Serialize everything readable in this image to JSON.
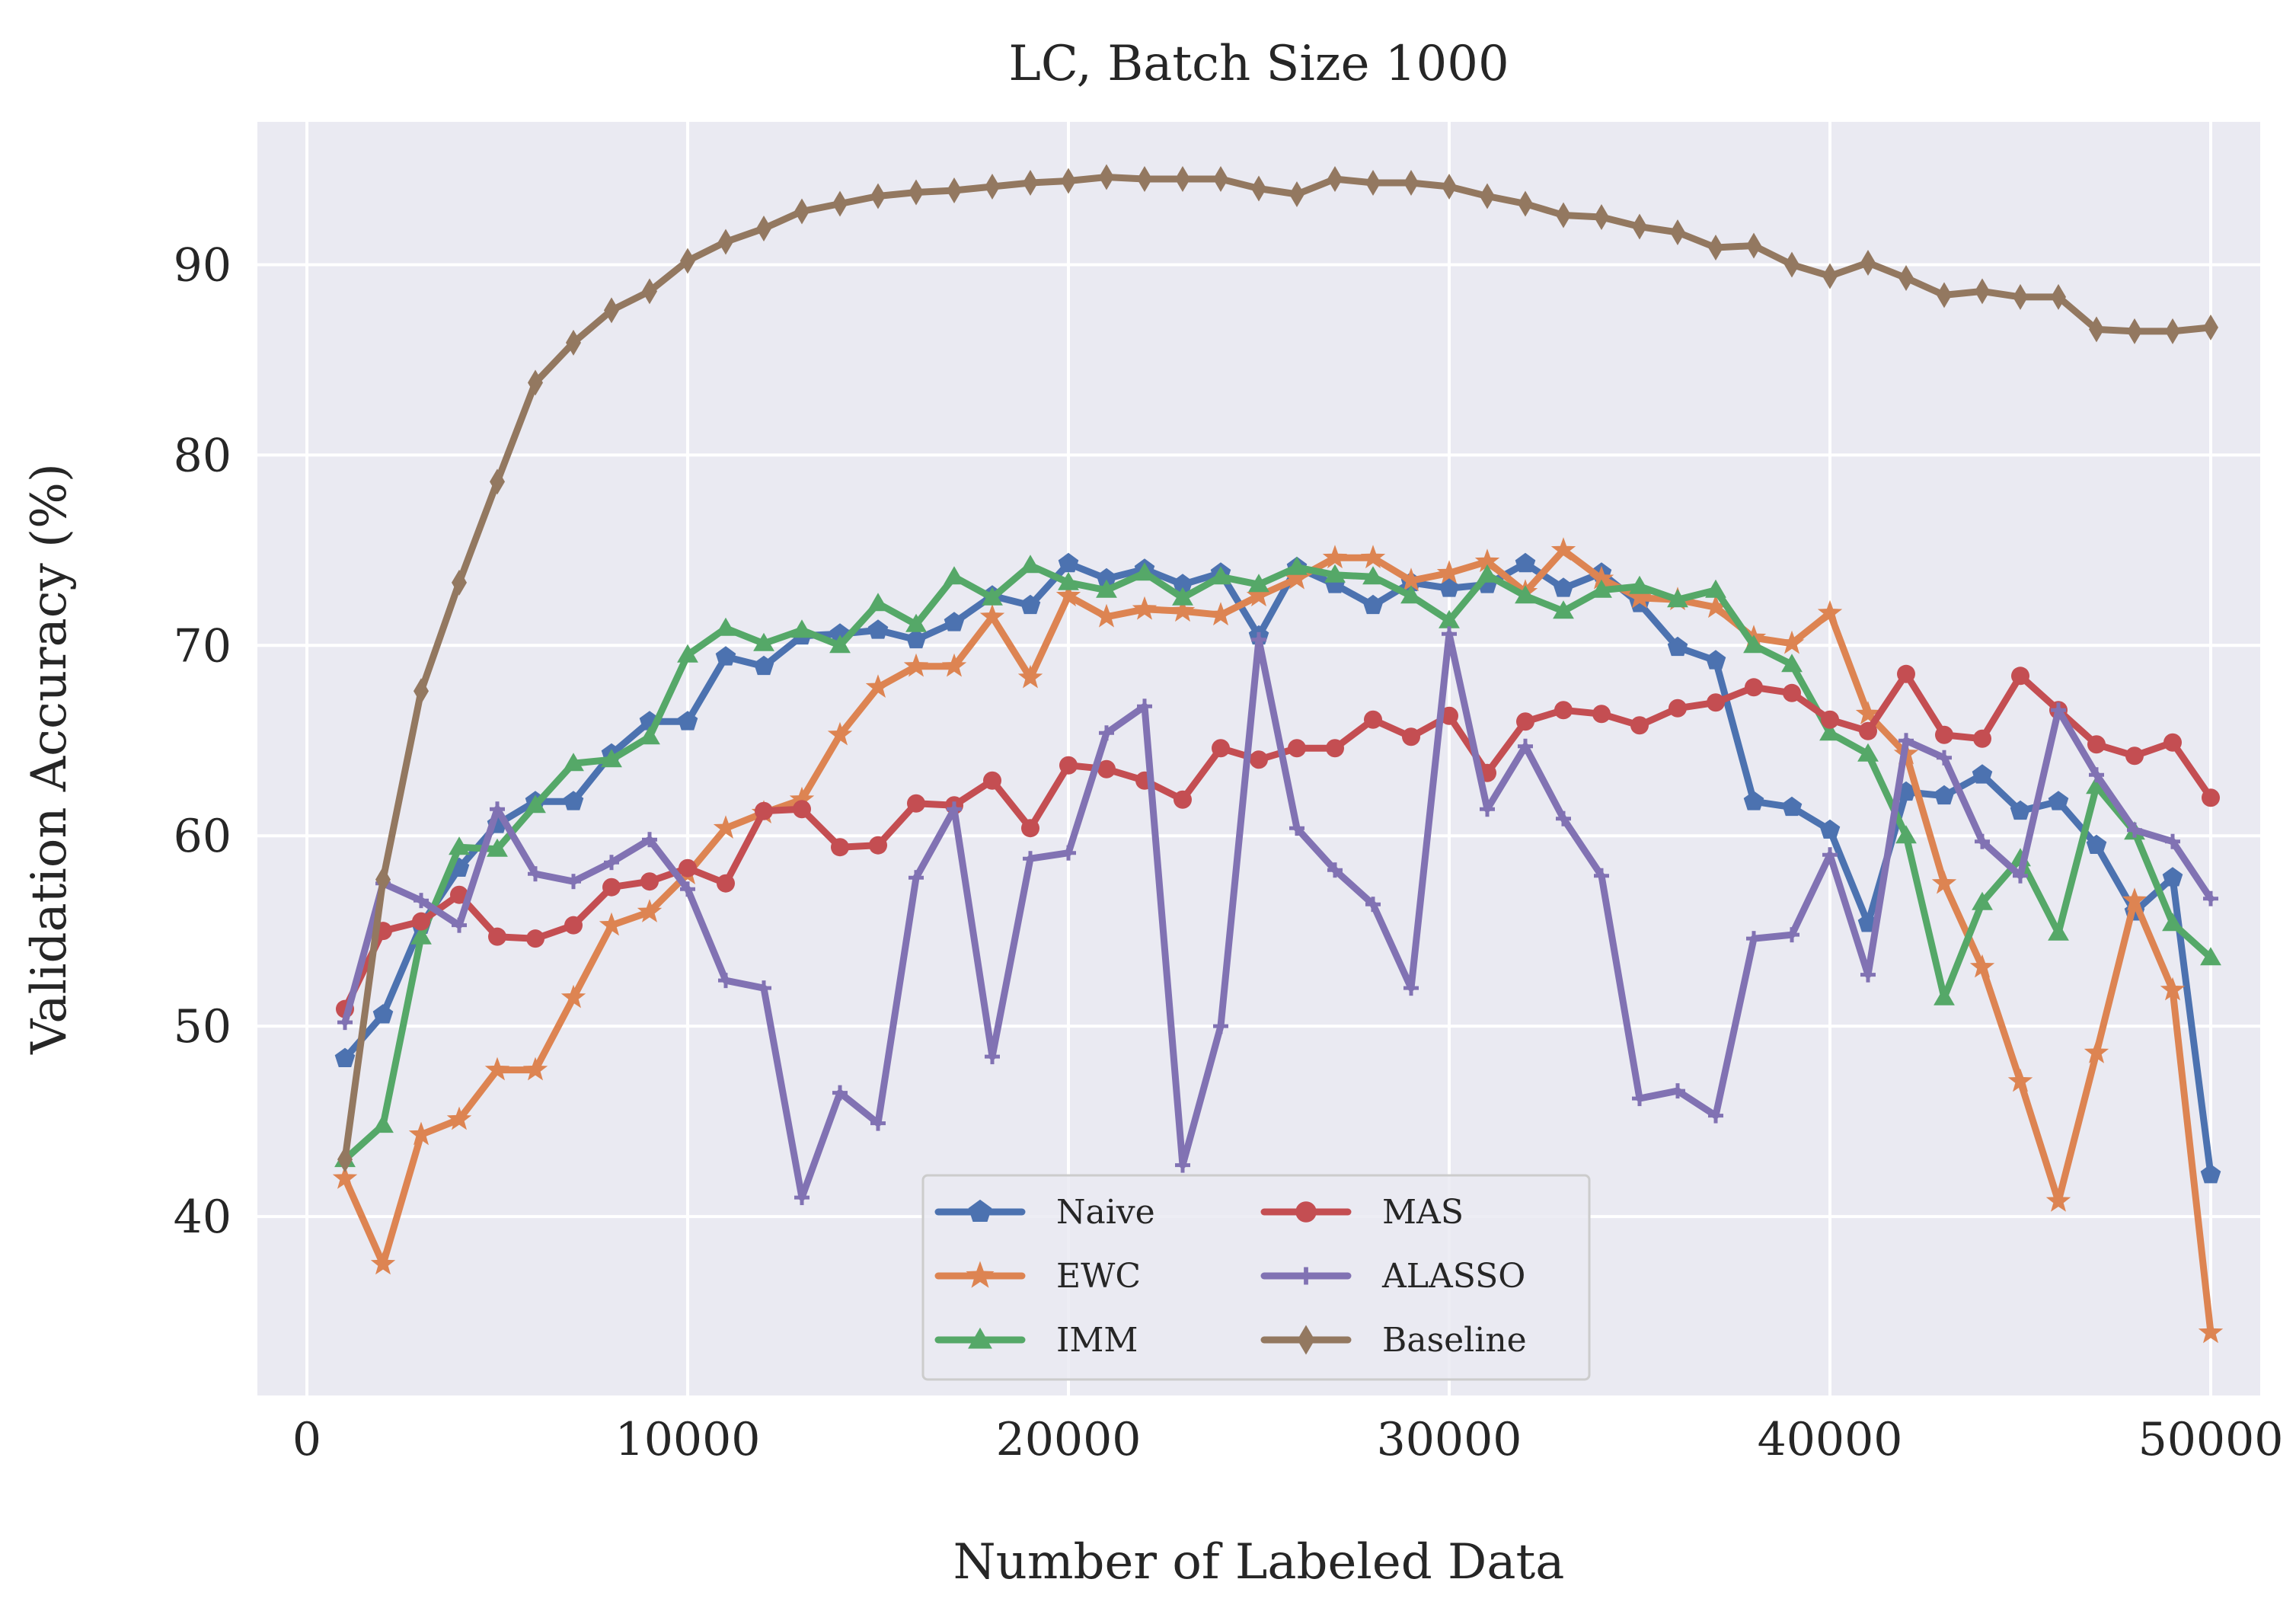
{
  "chart_data": {
    "type": "line",
    "title": "LC, Batch Size 1000",
    "xlabel": "Number of Labeled Data",
    "ylabel": "Validation Accuracy (%)",
    "xlim": [
      -1300,
      51300
    ],
    "ylim": [
      30.6,
      97.5
    ],
    "xticks": [
      0,
      10000,
      20000,
      30000,
      40000,
      50000
    ],
    "yticks": [
      40,
      50,
      60,
      70,
      80,
      90
    ],
    "grid": true,
    "legend": {
      "placement": "lower center",
      "columns": 2
    },
    "x": [
      1000,
      2000,
      3000,
      4000,
      5000,
      6000,
      7000,
      8000,
      9000,
      10000,
      11000,
      12000,
      13000,
      14000,
      15000,
      16000,
      17000,
      18000,
      19000,
      20000,
      21000,
      22000,
      23000,
      24000,
      25000,
      26000,
      27000,
      28000,
      29000,
      30000,
      31000,
      32000,
      33000,
      34000,
      35000,
      36000,
      37000,
      38000,
      39000,
      40000,
      41000,
      42000,
      43000,
      44000,
      45000,
      46000,
      47000,
      48000,
      49000,
      50000
    ],
    "series": [
      {
        "name": "Naive",
        "color": "#4c72b0",
        "marker": "pentagon",
        "values": [
          48.3,
          50.6,
          55.3,
          58.3,
          60.6,
          61.8,
          61.8,
          64.3,
          66.0,
          66.0,
          69.4,
          68.9,
          70.5,
          70.6,
          70.8,
          70.3,
          71.2,
          72.6,
          72.1,
          74.3,
          73.5,
          74.0,
          73.2,
          73.8,
          70.5,
          74.1,
          73.2,
          72.1,
          73.3,
          73.0,
          73.2,
          74.3,
          73.0,
          73.8,
          72.2,
          69.9,
          69.2,
          61.8,
          61.5,
          60.3,
          55.4,
          62.3,
          62.1,
          63.2,
          61.3,
          61.8,
          59.5,
          56.0,
          57.8,
          42.2
        ]
      },
      {
        "name": "EWC",
        "color": "#dd8452",
        "marker": "star",
        "values": [
          42.0,
          37.5,
          44.3,
          45.1,
          47.7,
          47.7,
          51.5,
          55.3,
          56.0,
          58.0,
          60.4,
          61.2,
          61.9,
          65.3,
          67.8,
          68.9,
          68.9,
          71.5,
          68.3,
          72.6,
          71.5,
          71.9,
          71.8,
          71.6,
          72.6,
          73.5,
          74.6,
          74.6,
          73.4,
          73.8,
          74.4,
          72.8,
          75.0,
          73.5,
          72.5,
          72.4,
          72.0,
          70.4,
          70.1,
          71.7,
          66.4,
          64.3,
          57.5,
          53.1,
          47.1,
          40.8,
          48.6,
          56.6,
          51.9,
          33.9
        ]
      },
      {
        "name": "IMM",
        "color": "#55a868",
        "marker": "triangle",
        "values": [
          43.0,
          44.8,
          54.7,
          59.4,
          59.3,
          61.6,
          63.8,
          64.0,
          65.2,
          69.5,
          70.9,
          70.1,
          70.8,
          70.0,
          72.2,
          71.1,
          73.6,
          72.5,
          74.2,
          73.3,
          72.9,
          73.8,
          72.5,
          73.6,
          73.2,
          74.1,
          73.7,
          73.6,
          72.6,
          71.3,
          73.7,
          72.6,
          71.8,
          72.9,
          73.1,
          72.4,
          72.9,
          70.0,
          69.0,
          65.4,
          64.3,
          60.0,
          51.5,
          56.5,
          58.8,
          54.9,
          62.6,
          60.2,
          55.4,
          53.6
        ]
      },
      {
        "name": "MAS",
        "color": "#c44e52",
        "marker": "circle",
        "values": [
          50.9,
          55.0,
          55.5,
          56.9,
          54.7,
          54.6,
          55.3,
          57.3,
          57.6,
          58.3,
          57.5,
          61.3,
          61.4,
          59.4,
          59.5,
          61.7,
          61.6,
          62.9,
          60.4,
          63.7,
          63.5,
          62.9,
          61.9,
          64.6,
          64.0,
          64.6,
          64.6,
          66.1,
          65.2,
          66.3,
          63.3,
          66.0,
          66.6,
          66.4,
          65.8,
          66.7,
          67.0,
          67.8,
          67.5,
          66.1,
          65.5,
          68.5,
          65.3,
          65.1,
          68.4,
          66.6,
          64.8,
          64.2,
          64.9,
          62.0
        ]
      },
      {
        "name": "ALASSO",
        "color": "#8172b3",
        "marker": "plus",
        "values": [
          50.2,
          57.5,
          56.6,
          55.3,
          61.4,
          58.0,
          57.6,
          58.6,
          59.8,
          57.2,
          52.4,
          52.0,
          41.0,
          46.5,
          44.9,
          57.8,
          61.4,
          48.4,
          58.8,
          59.1,
          65.4,
          66.8,
          42.7,
          50.0,
          70.3,
          60.4,
          58.2,
          56.4,
          52.0,
          70.6,
          61.4,
          64.7,
          60.9,
          57.9,
          46.2,
          46.6,
          45.3,
          54.6,
          54.8,
          59.0,
          52.7,
          65.0,
          64.1,
          59.7,
          57.9,
          66.6,
          63.2,
          60.3,
          59.7,
          56.7
        ]
      },
      {
        "name": "Baseline",
        "color": "#937860",
        "marker": "thin_diamond",
        "values": [
          43.0,
          57.7,
          67.6,
          73.3,
          78.6,
          83.8,
          85.9,
          87.6,
          88.6,
          90.2,
          91.2,
          91.9,
          92.8,
          93.2,
          93.6,
          93.8,
          93.9,
          94.1,
          94.3,
          94.4,
          94.6,
          94.5,
          94.5,
          94.5,
          94.0,
          93.7,
          94.5,
          94.3,
          94.3,
          94.1,
          93.6,
          93.2,
          92.6,
          92.5,
          92.0,
          91.7,
          90.9,
          91.0,
          90.0,
          89.4,
          90.1,
          89.3,
          88.4,
          88.6,
          88.3,
          88.3,
          86.6,
          86.5,
          86.5,
          86.7
        ]
      }
    ]
  }
}
